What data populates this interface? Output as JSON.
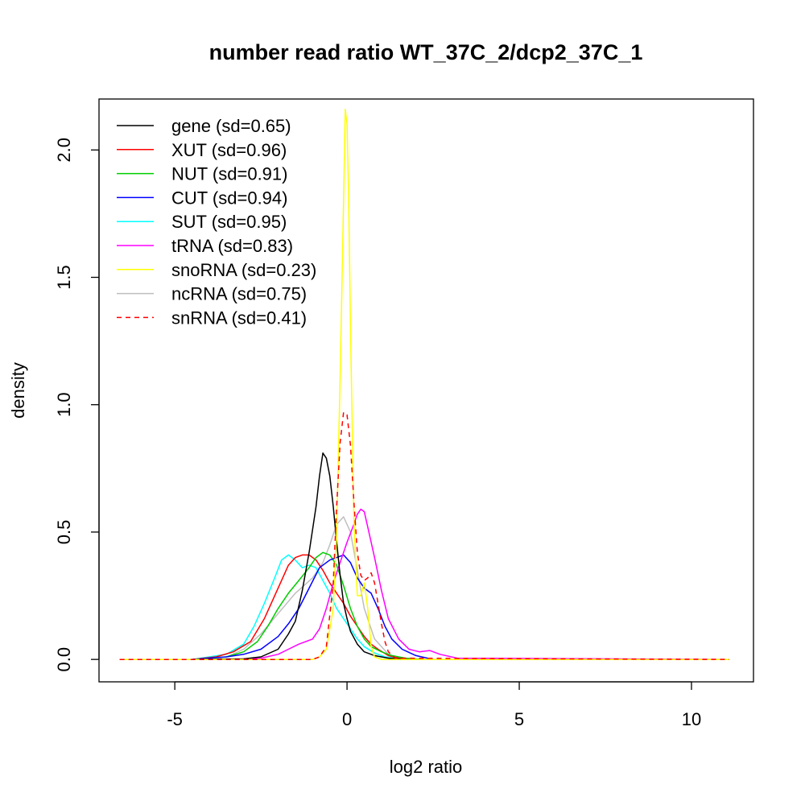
{
  "chart_data": {
    "type": "line",
    "title": "number read ratio WT_37C_2/dcp2_37C_1",
    "xlabel": "log2 ratio",
    "ylabel": "density",
    "xlim": [
      -7.2,
      11.8
    ],
    "ylim": [
      -0.088,
      2.2
    ],
    "xticks": [
      -5,
      0,
      5,
      10
    ],
    "xtick_labels": [
      "-5",
      "0",
      "5",
      "10"
    ],
    "yticks": [
      0.0,
      0.5,
      1.0,
      1.5,
      2.0
    ],
    "ytick_labels": [
      "0.0",
      "0.5",
      "1.0",
      "1.5",
      "2.0"
    ],
    "grid": false,
    "legend_position": "top-left",
    "series": [
      {
        "name": "gene (sd=0.65)",
        "color": "#000000",
        "dash": false,
        "x": [
          -6.6,
          -4.5,
          -3.0,
          -2.5,
          -2.0,
          -1.7,
          -1.5,
          -1.3,
          -1.1,
          -0.9,
          -0.8,
          -0.7,
          -0.6,
          -0.5,
          -0.4,
          -0.3,
          -0.2,
          -0.1,
          0.0,
          0.1,
          0.3,
          0.5,
          0.8,
          1.2,
          1.6,
          2.0,
          11.1
        ],
        "y": [
          0,
          0,
          0.002,
          0.01,
          0.04,
          0.1,
          0.15,
          0.27,
          0.42,
          0.6,
          0.72,
          0.81,
          0.79,
          0.72,
          0.6,
          0.46,
          0.33,
          0.22,
          0.16,
          0.11,
          0.06,
          0.03,
          0.015,
          0.005,
          0.001,
          0,
          0
        ]
      },
      {
        "name": "XUT (sd=0.96)",
        "color": "#ff0000",
        "dash": false,
        "x": [
          -6.6,
          -4.5,
          -3.8,
          -3.3,
          -2.8,
          -2.4,
          -2.0,
          -1.7,
          -1.5,
          -1.3,
          -1.1,
          -0.9,
          -0.7,
          -0.5,
          -0.3,
          -0.1,
          0.1,
          0.3,
          0.5,
          0.7,
          0.9,
          1.2,
          1.5,
          2.0,
          11.1
        ],
        "y": [
          0,
          0,
          0.01,
          0.03,
          0.07,
          0.16,
          0.28,
          0.37,
          0.4,
          0.41,
          0.41,
          0.39,
          0.35,
          0.3,
          0.26,
          0.22,
          0.17,
          0.13,
          0.09,
          0.06,
          0.04,
          0.015,
          0.005,
          0,
          0
        ]
      },
      {
        "name": "NUT (sd=0.91)",
        "color": "#00cd00",
        "dash": false,
        "x": [
          -6.6,
          -4.5,
          -3.5,
          -3.0,
          -2.6,
          -2.3,
          -2.0,
          -1.7,
          -1.4,
          -1.1,
          -0.9,
          -0.7,
          -0.5,
          -0.3,
          -0.1,
          0.1,
          0.3,
          0.5,
          0.7,
          1.0,
          1.3,
          1.7,
          2.2,
          11.1
        ],
        "y": [
          0,
          0,
          0.01,
          0.03,
          0.07,
          0.13,
          0.2,
          0.26,
          0.31,
          0.36,
          0.4,
          0.42,
          0.41,
          0.37,
          0.29,
          0.2,
          0.13,
          0.08,
          0.05,
          0.03,
          0.015,
          0.005,
          0,
          0
        ]
      },
      {
        "name": "CUT (sd=0.94)",
        "color": "#0000ff",
        "dash": false,
        "x": [
          -6.6,
          -4.5,
          -3.5,
          -3.0,
          -2.5,
          -2.0,
          -1.7,
          -1.4,
          -1.1,
          -0.8,
          -0.5,
          -0.3,
          -0.1,
          0.1,
          0.3,
          0.5,
          0.7,
          0.9,
          1.1,
          1.3,
          1.6,
          2.0,
          2.5,
          11.1
        ],
        "y": [
          0,
          0,
          0.01,
          0.02,
          0.04,
          0.09,
          0.14,
          0.2,
          0.28,
          0.36,
          0.39,
          0.4,
          0.41,
          0.38,
          0.32,
          0.28,
          0.26,
          0.2,
          0.13,
          0.08,
          0.04,
          0.015,
          0,
          0
        ]
      },
      {
        "name": "SUT (sd=0.95)",
        "color": "#00ffff",
        "dash": false,
        "x": [
          -6.6,
          -4.5,
          -4.0,
          -3.5,
          -3.0,
          -2.7,
          -2.4,
          -2.1,
          -1.9,
          -1.7,
          -1.5,
          -1.3,
          -1.1,
          -0.9,
          -0.7,
          -0.5,
          -0.3,
          -0.1,
          0.1,
          0.3,
          0.5,
          0.8,
          1.1,
          1.5,
          2.0,
          11.1
        ],
        "y": [
          0,
          0,
          0.01,
          0.02,
          0.06,
          0.13,
          0.22,
          0.32,
          0.39,
          0.41,
          0.39,
          0.36,
          0.37,
          0.36,
          0.31,
          0.26,
          0.2,
          0.16,
          0.12,
          0.08,
          0.05,
          0.025,
          0.01,
          0.005,
          0,
          0
        ]
      },
      {
        "name": "tRNA (sd=0.83)",
        "color": "#ff00ff",
        "dash": false,
        "x": [
          -6.6,
          -3.5,
          -2.5,
          -2.0,
          -1.7,
          -1.4,
          -1.0,
          -0.8,
          -0.6,
          -0.4,
          -0.2,
          0.0,
          0.2,
          0.3,
          0.4,
          0.5,
          0.6,
          0.8,
          1.0,
          1.2,
          1.5,
          1.8,
          2.1,
          2.4,
          2.7,
          3.2,
          11.1
        ],
        "y": [
          0,
          0,
          0.005,
          0.02,
          0.04,
          0.06,
          0.08,
          0.12,
          0.2,
          0.3,
          0.38,
          0.46,
          0.53,
          0.57,
          0.59,
          0.58,
          0.52,
          0.4,
          0.27,
          0.16,
          0.08,
          0.04,
          0.03,
          0.035,
          0.02,
          0.005,
          0
        ]
      },
      {
        "name": "snoRNA (sd=0.23)",
        "color": "#ffff00",
        "dash": false,
        "x": [
          -6.6,
          -1.0,
          -0.8,
          -0.6,
          -0.4,
          -0.3,
          -0.2,
          -0.1,
          -0.05,
          0.0,
          0.05,
          0.1,
          0.2,
          0.3,
          0.4,
          0.5,
          0.6,
          0.7,
          0.8,
          1.0,
          11.1
        ],
        "y": [
          0,
          0,
          0.01,
          0.04,
          0.2,
          0.5,
          1.1,
          1.8,
          2.16,
          2.1,
          1.8,
          1.3,
          0.55,
          0.25,
          0.25,
          0.3,
          0.2,
          0.05,
          0.01,
          0,
          0
        ]
      },
      {
        "name": "ncRNA (sd=0.75)",
        "color": "#bebebe",
        "dash": false,
        "x": [
          -6.6,
          -4.5,
          -3.5,
          -3.0,
          -2.5,
          -2.0,
          -1.5,
          -1.0,
          -0.7,
          -0.5,
          -0.3,
          -0.1,
          0.1,
          0.3,
          0.5,
          0.8,
          1.2,
          1.6,
          2.0,
          11.1
        ],
        "y": [
          0,
          0,
          0.01,
          0.04,
          0.1,
          0.18,
          0.26,
          0.32,
          0.38,
          0.45,
          0.53,
          0.56,
          0.5,
          0.35,
          0.2,
          0.08,
          0.02,
          0.005,
          0,
          0
        ]
      },
      {
        "name": "snRNA (sd=0.41)",
        "color": "#ff0000",
        "dash": true,
        "x": [
          -6.6,
          -1.0,
          -0.8,
          -0.6,
          -0.4,
          -0.3,
          -0.2,
          -0.1,
          0.0,
          0.1,
          0.2,
          0.3,
          0.4,
          0.5,
          0.6,
          0.7,
          0.8,
          0.9,
          1.0,
          1.1,
          1.2,
          1.4,
          11.1
        ],
        "y": [
          0,
          0,
          0.01,
          0.05,
          0.3,
          0.6,
          0.85,
          0.97,
          0.96,
          0.84,
          0.62,
          0.42,
          0.33,
          0.31,
          0.32,
          0.34,
          0.3,
          0.22,
          0.14,
          0.07,
          0.03,
          0.005,
          0
        ]
      }
    ]
  }
}
